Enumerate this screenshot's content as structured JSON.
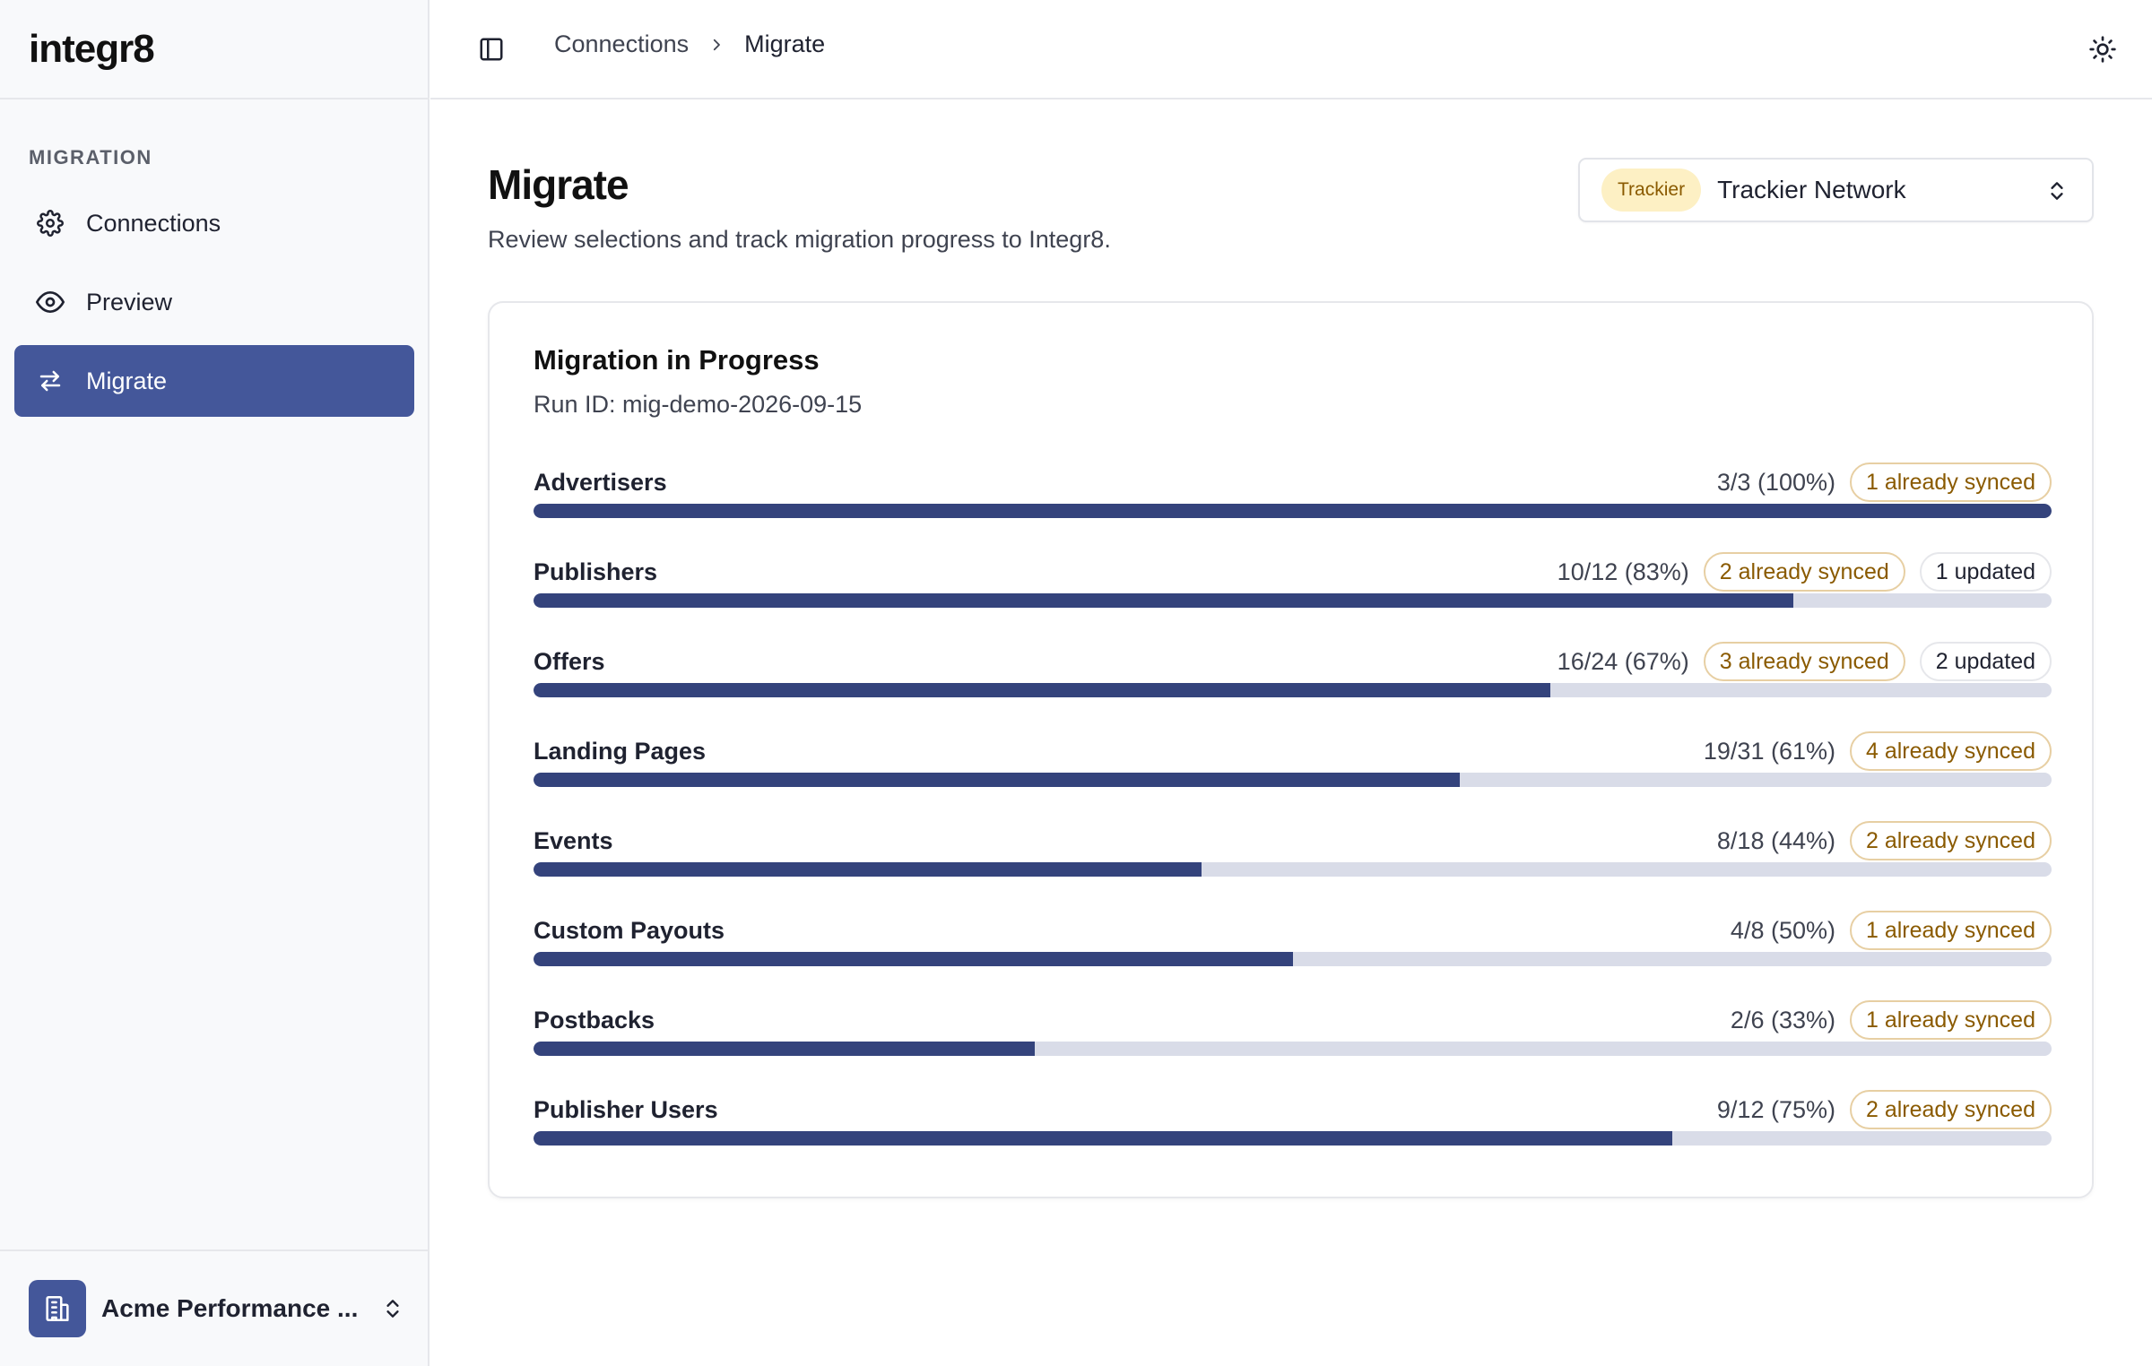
{
  "app": {
    "logo": "integr8"
  },
  "sidebar": {
    "section_label": "MIGRATION",
    "items": [
      {
        "label": "Connections",
        "icon": "gear-icon",
        "active": false
      },
      {
        "label": "Preview",
        "icon": "eye-icon",
        "active": false
      },
      {
        "label": "Migrate",
        "icon": "arrows-swap-icon",
        "active": true
      }
    ],
    "org_name": "Acme Performance ..."
  },
  "breadcrumb": {
    "parent": "Connections",
    "current": "Migrate"
  },
  "page": {
    "title": "Migrate",
    "subtitle": "Review selections and track migration progress to Integr8."
  },
  "source": {
    "tag": "Trackier",
    "name": "Trackier Network"
  },
  "card": {
    "title": "Migration in Progress",
    "run_id": "Run ID: mig-demo-2026-09-15"
  },
  "rows": [
    {
      "label": "Advertisers",
      "count": "3/3 (100%)",
      "progress": 1.0,
      "synced": "1 already synced",
      "updated": ""
    },
    {
      "label": "Publishers",
      "count": "10/12 (83%)",
      "progress": 0.83,
      "synced": "2 already synced",
      "updated": "1 updated"
    },
    {
      "label": "Offers",
      "count": "16/24 (67%)",
      "progress": 0.67,
      "synced": "3 already synced",
      "updated": "2 updated"
    },
    {
      "label": "Landing Pages",
      "count": "19/31 (61%)",
      "progress": 0.61,
      "synced": "4 already synced",
      "updated": ""
    },
    {
      "label": "Events",
      "count": "8/18 (44%)",
      "progress": 0.44,
      "synced": "2 already synced",
      "updated": ""
    },
    {
      "label": "Custom Payouts",
      "count": "4/8 (50%)",
      "progress": 0.5,
      "synced": "1 already synced",
      "updated": ""
    },
    {
      "label": "Postbacks",
      "count": "2/6 (33%)",
      "progress": 0.33,
      "synced": "1 already synced",
      "updated": ""
    },
    {
      "label": "Publisher Users",
      "count": "9/12 (75%)",
      "progress": 0.75,
      "synced": "2 already synced",
      "updated": ""
    }
  ],
  "colors": {
    "accent": "#44579a",
    "bar_fill": "#34437c",
    "bar_track": "#d9dce8",
    "synced_text": "#8a5a00",
    "synced_border": "#e7cfa3",
    "source_tag_bg": "#fdf0c4"
  }
}
